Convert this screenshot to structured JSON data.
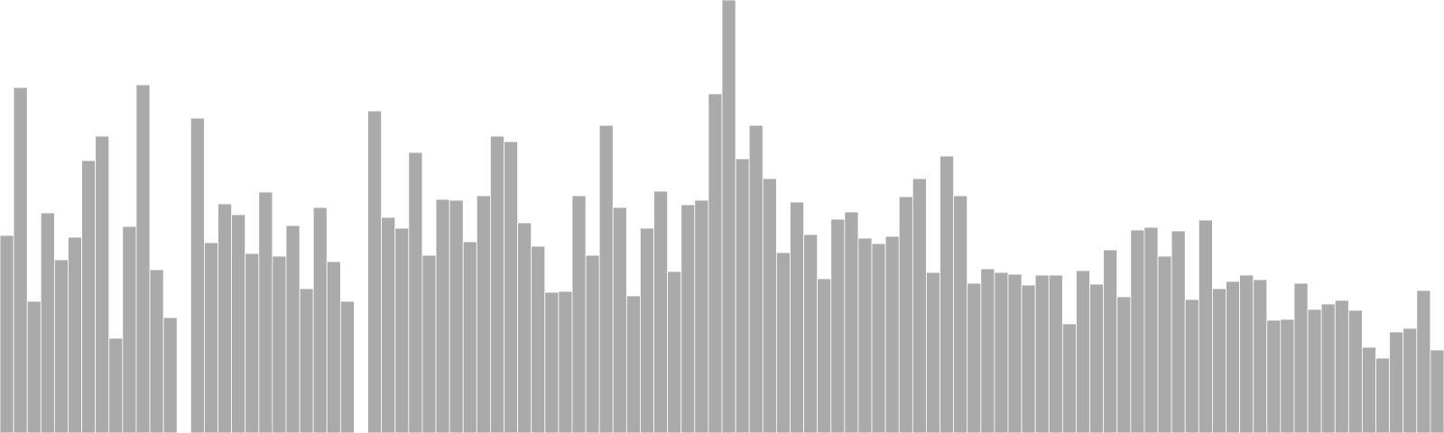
{
  "chart_data": {
    "type": "bar",
    "title": "",
    "xlabel": "",
    "ylabel": "",
    "grid": false,
    "legend": "none",
    "ylim": [
      0,
      480
    ],
    "bar_color": "#aaaaaa",
    "bar_edge_color": "#ffffff",
    "values": [
      219,
      383,
      146,
      244,
      192,
      217,
      302,
      329,
      105,
      229,
      386,
      181,
      128,
      0,
      349,
      211,
      254,
      242,
      199,
      267,
      196,
      230,
      160,
      250,
      190,
      146,
      0,
      357,
      239,
      227,
      311,
      197,
      259,
      258,
      212,
      263,
      329,
      323,
      233,
      207,
      156,
      157,
      263,
      197,
      341,
      250,
      152,
      227,
      268,
      179,
      253,
      258,
      376,
      480,
      304,
      341,
      282,
      200,
      256,
      220,
      171,
      237,
      245,
      216,
      210,
      218,
      262,
      282,
      178,
      307,
      263,
      166,
      182,
      178,
      176,
      164,
      175,
      175,
      121,
      180,
      165,
      203,
      151,
      225,
      228,
      196,
      224,
      148,
      236,
      160,
      168,
      175,
      170,
      125,
      126,
      166,
      137,
      143,
      147,
      136,
      95,
      83,
      112,
      116,
      158,
      92
    ]
  }
}
